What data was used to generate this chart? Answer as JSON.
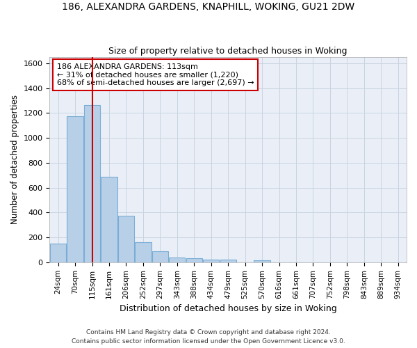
{
  "title1": "186, ALEXANDRA GARDENS, KNAPHILL, WOKING, GU21 2DW",
  "title2": "Size of property relative to detached houses in Woking",
  "xlabel": "Distribution of detached houses by size in Woking",
  "ylabel": "Number of detached properties",
  "categories": [
    "24sqm",
    "70sqm",
    "115sqm",
    "161sqm",
    "206sqm",
    "252sqm",
    "297sqm",
    "343sqm",
    "388sqm",
    "434sqm",
    "479sqm",
    "525sqm",
    "570sqm",
    "616sqm",
    "661sqm",
    "707sqm",
    "752sqm",
    "798sqm",
    "843sqm",
    "889sqm",
    "934sqm"
  ],
  "values": [
    150,
    1175,
    1265,
    685,
    375,
    160,
    90,
    40,
    30,
    20,
    20,
    0,
    15,
    0,
    0,
    0,
    0,
    0,
    0,
    0,
    0
  ],
  "bar_color": "#b8cfe8",
  "bar_edge_color": "#7aadd4",
  "ylim": [
    0,
    1650
  ],
  "yticks": [
    0,
    200,
    400,
    600,
    800,
    1000,
    1200,
    1400,
    1600
  ],
  "property_line_label": "186 ALEXANDRA GARDENS: 113sqm",
  "annotation_line1": "← 31% of detached houses are smaller (1,220)",
  "annotation_line2": "68% of semi-detached houses are larger (2,697) →",
  "annotation_box_color": "#ffffff",
  "annotation_box_edge": "#cc0000",
  "red_line_color": "#cc0000",
  "grid_color": "#c8d4e0",
  "bg_color": "#eaeff7",
  "footer1": "Contains HM Land Registry data © Crown copyright and database right 2024.",
  "footer2": "Contains public sector information licensed under the Open Government Licence v3.0.",
  "red_line_bin_index": 2
}
